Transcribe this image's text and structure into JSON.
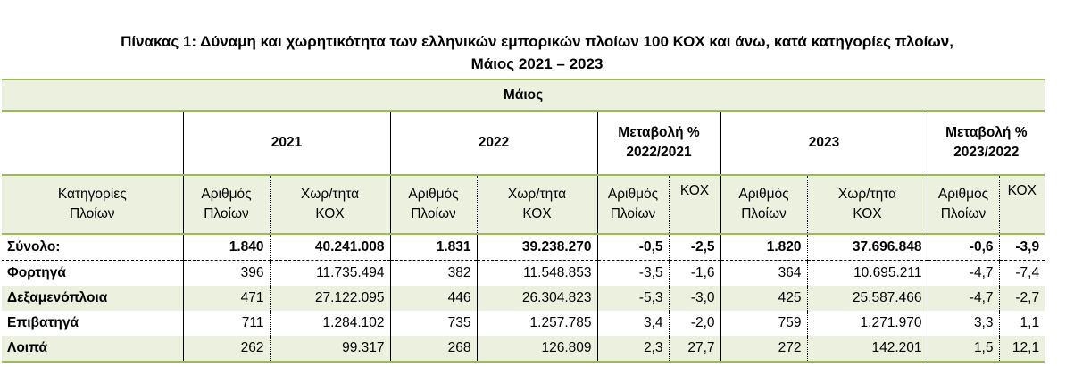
{
  "title": {
    "line1": "Πίνακας 1: Δύναμη και χωρητικότητα των ελληνικών εμπορικών πλοίων 100 ΚΟΧ και άνω, κατά κατηγορίες πλοίων,",
    "line2": "Μάιος 2021 – 2023"
  },
  "table": {
    "month_header": "Μάιος",
    "year_headers": {
      "y2021": "2021",
      "y2022": "2022",
      "change1_line1": "Μεταβολή %",
      "change1_line2": "2022/2021",
      "y2023": "2023",
      "change2_line1": "Μεταβολή %",
      "change2_line2": "2023/2022"
    },
    "sub_headers": {
      "category_line1": "Κατηγορίες",
      "category_line2": "Πλοίων",
      "ships_line1": "Αριθμός",
      "ships_line2": "Πλοίων",
      "tonnage_line1": "Χωρ/τητα",
      "tonnage_line2": "ΚΟΧ",
      "kox": "ΚΟΧ"
    },
    "rows": [
      {
        "category": "Σύνολο:",
        "ships_2021": "1.840",
        "gt_2021": "40.241.008",
        "ships_2022": "1.831",
        "gt_2022": "39.238.270",
        "ch_ships_22": "-0,5",
        "ch_gt_22": "-2,5",
        "ships_2023": "1.820",
        "gt_2023": "37.696.848",
        "ch_ships_23": "-0,6",
        "ch_gt_23": "-3,9"
      },
      {
        "category": "Φορτηγά",
        "ships_2021": "396",
        "gt_2021": "11.735.494",
        "ships_2022": "382",
        "gt_2022": "11.548.853",
        "ch_ships_22": "-3,5",
        "ch_gt_22": "-1,6",
        "ships_2023": "364",
        "gt_2023": "10.695.211",
        "ch_ships_23": "-4,7",
        "ch_gt_23": "-7,4"
      },
      {
        "category": "Δεξαμενόπλοια",
        "ships_2021": "471",
        "gt_2021": "27.122.095",
        "ships_2022": "446",
        "gt_2022": "26.304.823",
        "ch_ships_22": "-5,3",
        "ch_gt_22": "-3,0",
        "ships_2023": "425",
        "gt_2023": "25.587.466",
        "ch_ships_23": "-4,7",
        "ch_gt_23": "-2,7"
      },
      {
        "category": "Επιβατηγά",
        "ships_2021": "711",
        "gt_2021": "1.284.102",
        "ships_2022": "735",
        "gt_2022": "1.257.785",
        "ch_ships_22": "3,4",
        "ch_gt_22": "-2,0",
        "ships_2023": "759",
        "gt_2023": "1.271.970",
        "ch_ships_23": "3,3",
        "ch_gt_23": "1,1"
      },
      {
        "category": "Λοιπά",
        "ships_2021": "262",
        "gt_2021": "99.317",
        "ships_2022": "268",
        "gt_2022": "126.809",
        "ch_ships_22": "2,3",
        "ch_gt_22": "27,7",
        "ships_2023": "272",
        "gt_2023": "142.201",
        "ch_ships_23": "1,5",
        "ch_gt_23": "12,1"
      }
    ]
  },
  "colors": {
    "band": "#ebf1de",
    "rule": "#9bbb59"
  }
}
